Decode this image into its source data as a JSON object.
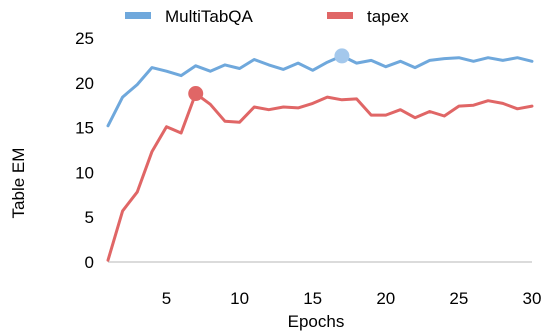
{
  "chart_data": {
    "type": "line",
    "xlabel": "Epochs",
    "ylabel": "Table EM",
    "xlim": [
      1,
      30
    ],
    "ylim": [
      0,
      25
    ],
    "xticks": [
      5,
      10,
      15,
      20,
      25,
      30
    ],
    "yticks": [
      0,
      5,
      10,
      15,
      20,
      25
    ],
    "grid": false,
    "legend_position": "top-center",
    "x": [
      1,
      2,
      3,
      4,
      5,
      6,
      7,
      8,
      9,
      10,
      11,
      12,
      13,
      14,
      15,
      16,
      17,
      18,
      19,
      20,
      21,
      22,
      23,
      24,
      25,
      26,
      27,
      28,
      29,
      30
    ],
    "series": [
      {
        "name": "MultiTabQA",
        "color": "#6fa8dc",
        "values": [
          15.2,
          18.4,
          19.8,
          21.7,
          21.3,
          20.8,
          21.9,
          21.3,
          22.0,
          21.6,
          22.6,
          22.0,
          21.5,
          22.2,
          21.4,
          22.3,
          23.0,
          22.2,
          22.5,
          21.8,
          22.4,
          21.7,
          22.5,
          22.7,
          22.8,
          22.4,
          22.8,
          22.5,
          22.8,
          22.4
        ],
        "highlight_point": {
          "x": 17,
          "y": 23.0,
          "color": "#a4c8ec"
        }
      },
      {
        "name": "tapex",
        "color": "#e06666",
        "values": [
          0.2,
          5.7,
          7.8,
          12.3,
          15.1,
          14.4,
          18.8,
          17.6,
          15.7,
          15.6,
          17.3,
          17.0,
          17.3,
          17.2,
          17.7,
          18.4,
          18.1,
          18.2,
          16.4,
          16.4,
          17.0,
          16.1,
          16.8,
          16.3,
          17.4,
          17.5,
          18.0,
          17.7,
          17.1,
          17.4
        ],
        "highlight_point": {
          "x": 7,
          "y": 18.8,
          "color": "#e06666"
        }
      }
    ]
  }
}
